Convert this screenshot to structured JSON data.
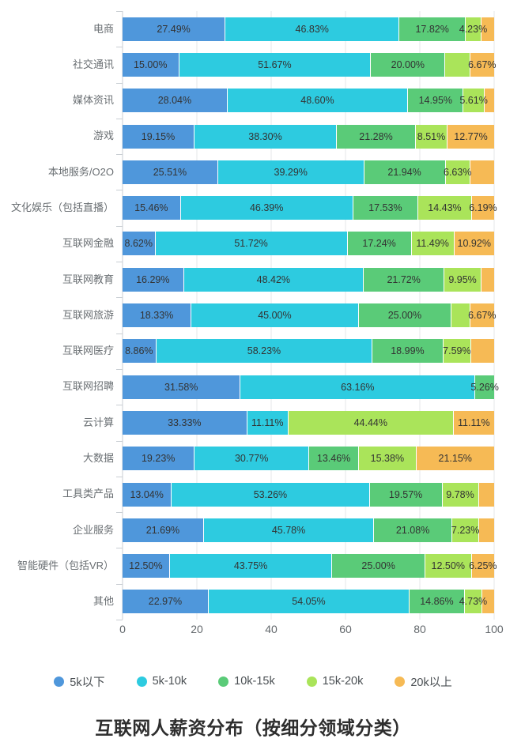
{
  "title": "互联网人薪资分布（按细分领域分类）",
  "colors": {
    "under5k": "#4f97db",
    "k5_10": "#2dcbe0",
    "k10_15": "#5acb78",
    "k15_20": "#aae45a",
    "over20k": "#f6ba55",
    "gridline": "#e4e7ea",
    "axis": "#c9ced3"
  },
  "chart_data": {
    "type": "bar",
    "stacked": true,
    "orientation": "horizontal",
    "title": "互联网人薪资分布（按细分领域分类）",
    "x_axis": {
      "min": 0,
      "max": 100,
      "ticks": [
        0,
        20,
        40,
        60,
        80,
        100
      ]
    },
    "legend_position": "bottom",
    "grid": true,
    "categories": [
      "电商",
      "社交通讯",
      "媒体资讯",
      "游戏",
      "本地服务/O2O",
      "文化娱乐（包括直播）",
      "互联网金融",
      "互联网教育",
      "互联网旅游",
      "互联网医疗",
      "互联网招聘",
      "云计算",
      "大数据",
      "工具类产品",
      "企业服务",
      "智能硬件（包括VR）",
      "其他"
    ],
    "series": [
      {
        "name": "5k以下",
        "color": "#4f97db",
        "values": [
          27.49,
          15.0,
          28.04,
          19.15,
          25.51,
          15.46,
          8.62,
          16.29,
          18.33,
          8.86,
          31.58,
          33.33,
          19.23,
          13.04,
          21.69,
          12.5,
          22.97
        ],
        "labels": [
          "27.49%",
          "15.00%",
          "28.04%",
          "19.15%",
          "25.51%",
          "15.46%",
          "8.62%",
          "16.29%",
          "18.33%",
          "8.86%",
          "31.58%",
          "33.33%",
          "19.23%",
          "13.04%",
          "21.69%",
          "12.50%",
          "22.97%"
        ]
      },
      {
        "name": "5k-10k",
        "color": "#2dcbe0",
        "values": [
          46.83,
          51.67,
          48.6,
          38.3,
          39.29,
          46.39,
          51.72,
          48.42,
          45.0,
          58.23,
          63.16,
          11.11,
          30.77,
          53.26,
          45.78,
          43.75,
          54.05
        ],
        "labels": [
          "46.83%",
          "51.67%",
          "48.60%",
          "38.30%",
          "39.29%",
          "46.39%",
          "51.72%",
          "48.42%",
          "45.00%",
          "58.23%",
          "63.16%",
          "11.11%",
          "30.77%",
          "53.26%",
          "45.78%",
          "43.75%",
          "54.05%"
        ]
      },
      {
        "name": "10k-15k",
        "color": "#5acb78",
        "values": [
          17.82,
          20.0,
          14.95,
          21.28,
          21.94,
          17.53,
          17.24,
          21.72,
          25.0,
          18.99,
          5.26,
          0,
          13.46,
          19.57,
          21.08,
          25.0,
          14.86
        ],
        "labels": [
          "17.82%",
          "20.00%",
          "14.95%",
          "21.28%",
          "21.94%",
          "17.53%",
          "17.24%",
          "21.72%",
          "25.00%",
          "18.99%",
          "5.26%",
          "",
          "13.46%",
          "19.57%",
          "21.08%",
          "25.00%",
          "14.86%"
        ]
      },
      {
        "name": "15k-20k",
        "color": "#aae45a",
        "values": [
          4.23,
          6.66,
          5.61,
          8.51,
          6.63,
          14.43,
          11.49,
          9.95,
          5.0,
          7.59,
          0,
          44.44,
          15.38,
          9.78,
          7.23,
          12.5,
          4.73
        ],
        "labels": [
          "4.23%",
          "",
          "5.61%",
          "8.51%",
          "6.63%",
          "14.43%",
          "11.49%",
          "9.95%",
          "",
          "7.59%",
          "",
          "44.44%",
          "15.38%",
          "9.78%",
          "7.23%",
          "12.50%",
          "4.73%"
        ]
      },
      {
        "name": "20k以上",
        "color": "#f6ba55",
        "values": [
          3.63,
          6.67,
          2.8,
          12.77,
          6.63,
          6.19,
          10.92,
          3.62,
          6.67,
          6.33,
          0,
          11.11,
          21.15,
          4.35,
          4.22,
          6.25,
          3.39
        ],
        "labels": [
          "",
          "6.67%",
          "",
          "12.77%",
          "",
          "6.19%",
          "10.92%",
          "",
          "6.67%",
          "",
          "",
          "11.11%",
          "21.15%",
          "",
          "",
          "6.25%",
          ""
        ]
      }
    ]
  }
}
